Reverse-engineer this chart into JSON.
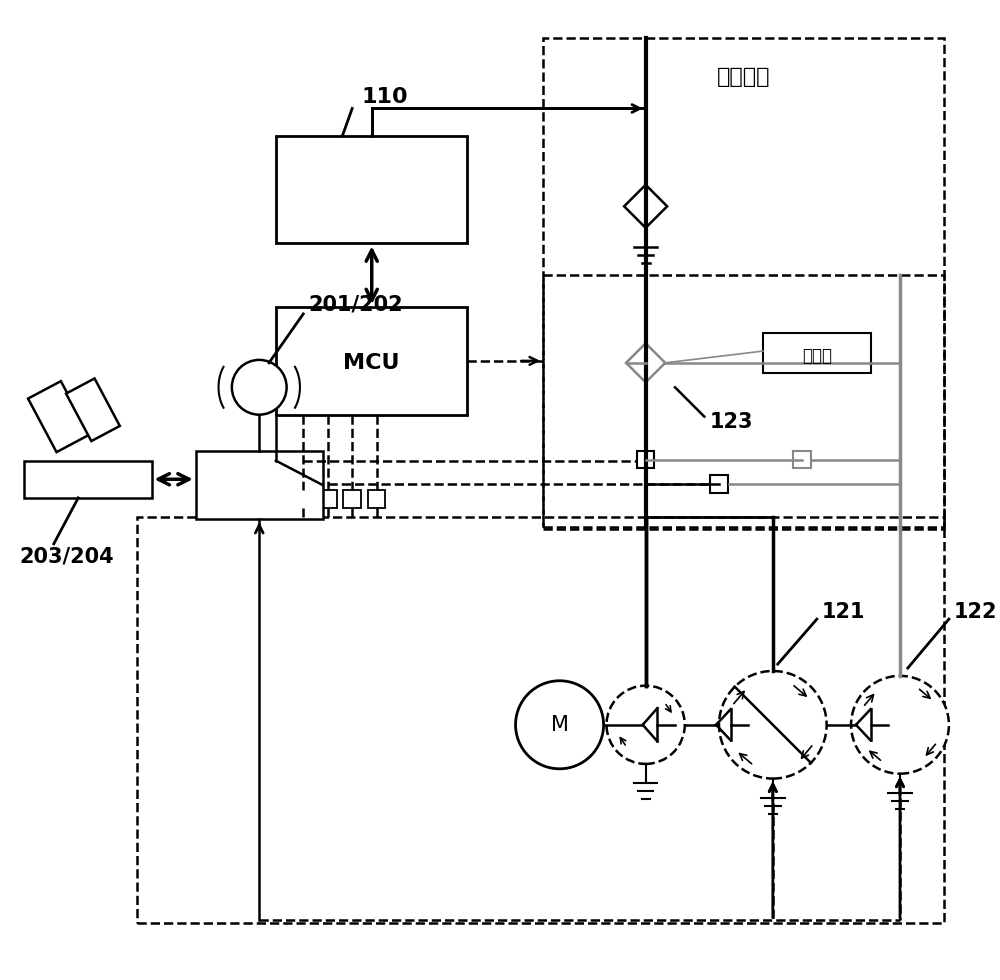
{
  "bg": "#ffffff",
  "lc": "#000000",
  "gc": "#888888",
  "label_110": "110",
  "label_mcu": "MCU",
  "label_201_202": "201/202",
  "label_203_204": "203/204",
  "label_121": "121",
  "label_122": "122",
  "label_123": "123",
  "label_m": "M",
  "label_control": "控制阀组",
  "label_confluence": "合流阀",
  "figw": 10.0,
  "figh": 9.8,
  "dpi": 100
}
